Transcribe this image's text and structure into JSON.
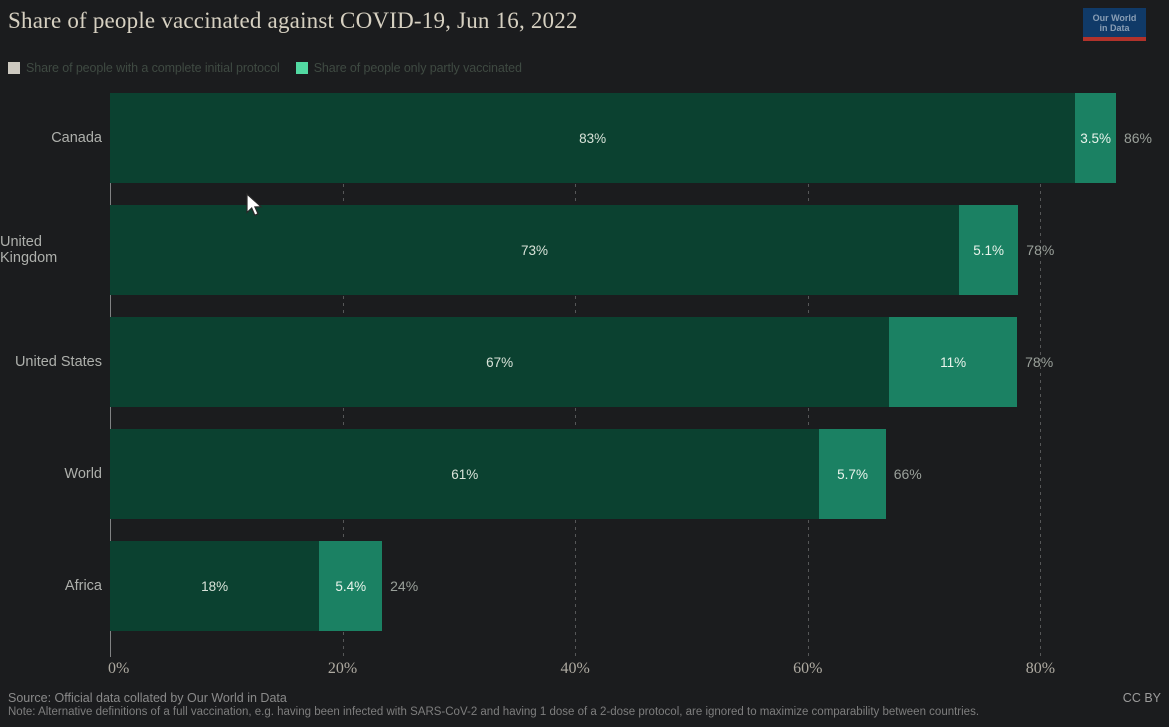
{
  "header": {
    "title": "Share of people vaccinated against COVID-19, Jun 16, 2022",
    "logo": {
      "line1": "Our World",
      "line2": "in Data",
      "bg_color": "#103a68",
      "accent_color": "#b1322b"
    }
  },
  "legend": [
    {
      "label": "Share of people with a complete initial protocol",
      "swatch_color": "#cdc9c0"
    },
    {
      "label": "Share of people only partly vaccinated",
      "swatch_color": "#52d9a2"
    }
  ],
  "chart_data": {
    "type": "bar",
    "orientation": "horizontal",
    "stacked": true,
    "categories": [
      "Canada",
      "United Kingdom",
      "United States",
      "World",
      "Africa"
    ],
    "series": [
      {
        "name": "Share of people with a complete initial protocol",
        "values": [
          83,
          73,
          67,
          61,
          18
        ],
        "labels": [
          "83%",
          "73%",
          "67%",
          "61%",
          "18%"
        ],
        "color": "#0b4130",
        "label_color": "#d9e3d9"
      },
      {
        "name": "Share of people only partly vaccinated",
        "values": [
          3.5,
          5.1,
          11,
          5.7,
          5.4
        ],
        "labels": [
          "3.5%",
          "5.1%",
          "11%",
          "5.7%",
          "5.4%"
        ],
        "color": "#1b8163",
        "label_color": "#eaf4ec"
      }
    ],
    "totals": [
      "86%",
      "78%",
      "78%",
      "66%",
      "24%"
    ],
    "x_ticks": [
      "0%",
      "20%",
      "40%",
      "60%",
      "80%"
    ],
    "x_tick_values": [
      0,
      20,
      40,
      60,
      80
    ],
    "xlim": [
      0,
      91
    ],
    "grid": true,
    "legend_position": "top"
  },
  "footer": {
    "source": "Source: Official data collated by Our World in Data",
    "note": "Note: Alternative definitions of a full vaccination, e.g. having been infected with SARS-CoV-2 and having 1 dose of a 2-dose protocol, are ignored to maximize comparability between countries.",
    "license": "CC BY"
  }
}
